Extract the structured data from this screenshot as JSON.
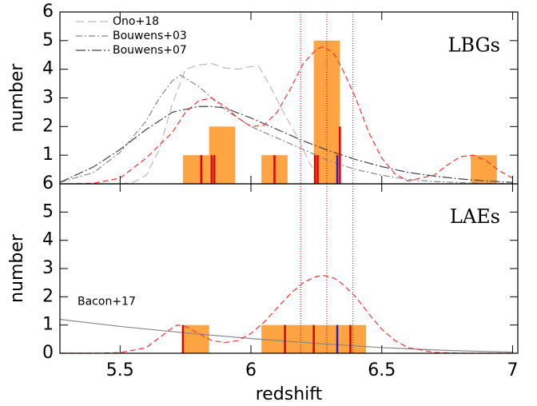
{
  "chart_data": [
    {
      "type": "histogram",
      "label": "LBGs",
      "ylabel": "number",
      "xlim": [
        5.27,
        7.02
      ],
      "ylim": [
        0,
        6
      ],
      "xticks": [
        5.5,
        6,
        6.5,
        7
      ],
      "yticks": [
        1,
        2,
        3,
        4,
        5,
        6
      ],
      "bins": [
        5.74,
        5.84,
        5.94,
        6.04,
        6.14,
        6.24,
        6.34,
        6.44,
        6.54,
        6.64,
        6.74,
        6.84,
        6.94
      ],
      "counts": [
        1,
        2,
        0,
        1,
        0,
        5,
        0,
        0,
        0,
        0,
        0,
        1
      ],
      "color": "#ffa443",
      "vlines": [
        6.19,
        6.29,
        6.39
      ],
      "legend": "upper left",
      "spikes": {
        "x": [
          5.81,
          5.85,
          5.86,
          6.09,
          6.245,
          6.255,
          6.33,
          6.34
        ],
        "values": [
          1,
          1,
          1,
          1,
          1,
          1,
          1,
          2
        ],
        "colors": [
          "#e00000",
          "#e00000",
          "#e00000",
          "#e00000",
          "#e00000",
          "#e00000",
          "#2020d0",
          "#e00000"
        ]
      },
      "series": [
        {
          "name": "Ono+18",
          "color": "#bbbbbb",
          "dash": "10,5",
          "x": [
            5.27,
            5.5,
            5.55,
            5.6,
            5.65,
            5.7,
            5.75,
            5.8,
            5.85,
            5.9,
            5.95,
            6.0,
            6.03,
            6.08,
            6.13,
            6.18,
            6.22,
            6.27
          ],
          "values": [
            0,
            0,
            0.05,
            0.3,
            1.2,
            2.8,
            4.0,
            4.15,
            4.2,
            4.05,
            4.0,
            4.1,
            4.1,
            3.3,
            2.4,
            1.6,
            0.8,
            0
          ]
        },
        {
          "name": "Bouwens+03",
          "color": "#888888",
          "dash": "8,3,2,3",
          "x": [
            5.27,
            5.4,
            5.5,
            5.6,
            5.65,
            5.7,
            5.73,
            5.8,
            5.9,
            6.0,
            6.1,
            6.2,
            6.3,
            6.4,
            6.5,
            6.6,
            6.7,
            6.8,
            6.9,
            7.0
          ],
          "values": [
            0.05,
            0.4,
            1.1,
            2.2,
            3.0,
            3.6,
            3.8,
            3.4,
            2.6,
            2.0,
            1.6,
            1.2,
            0.8,
            0.5,
            0.3,
            0.15,
            0.08,
            0.04,
            0.02,
            0.01
          ]
        },
        {
          "name": "Bouwens+07",
          "color": "#444444",
          "dash": "12,3,2,3",
          "x": [
            5.27,
            5.4,
            5.5,
            5.6,
            5.7,
            5.8,
            5.85,
            5.9,
            6.0,
            6.1,
            6.2,
            6.3,
            6.4,
            6.5,
            6.6,
            6.7,
            6.8,
            6.9,
            7.0
          ],
          "values": [
            0.05,
            0.6,
            1.2,
            1.9,
            2.5,
            2.7,
            2.7,
            2.65,
            2.3,
            1.9,
            1.5,
            1.15,
            0.85,
            0.6,
            0.4,
            0.27,
            0.17,
            0.1,
            0.05
          ]
        },
        {
          "color": "#ff3030",
          "dash": "7,4",
          "x": [
            5.3,
            5.4,
            5.5,
            5.6,
            5.7,
            5.75,
            5.8,
            5.85,
            5.9,
            5.95,
            6.0,
            6.05,
            6.1,
            6.15,
            6.2,
            6.25,
            6.28,
            6.32,
            6.35,
            6.4,
            6.45,
            6.5,
            6.55,
            6.6,
            6.7,
            6.75,
            6.8,
            6.85,
            6.9,
            6.95,
            7.0
          ],
          "values": [
            0,
            0.02,
            0.2,
            0.9,
            1.8,
            2.5,
            2.9,
            3.0,
            2.7,
            2.3,
            2.0,
            2.05,
            2.5,
            3.3,
            4.2,
            4.7,
            4.8,
            4.5,
            4.0,
            3.0,
            1.8,
            0.9,
            0.35,
            0.1,
            0.3,
            0.65,
            0.95,
            1.0,
            0.8,
            0.45,
            0.2
          ]
        }
      ]
    },
    {
      "type": "histogram",
      "label": "LAEs",
      "ylabel": "number",
      "xlabel": "redshift",
      "xlim": [
        5.27,
        7.02
      ],
      "ylim": [
        0,
        6
      ],
      "xticks": [
        5.5,
        6,
        6.5,
        7
      ],
      "yticks": [
        0,
        1,
        2,
        3,
        4,
        5,
        6
      ],
      "bins": [
        5.74,
        5.84,
        5.94,
        6.04,
        6.14,
        6.24,
        6.34,
        6.44
      ],
      "counts": [
        1,
        0,
        0,
        1,
        1,
        1,
        1
      ],
      "color": "#ffa443",
      "vlines": [
        6.19,
        6.29,
        6.39
      ],
      "spikes": {
        "x": [
          5.74,
          6.13,
          6.24,
          6.33,
          6.38
        ],
        "values": [
          1,
          1,
          1,
          1,
          1
        ],
        "colors": [
          "#e00000",
          "#e00000",
          "#e00000",
          "#2020d0",
          "#e00000"
        ]
      },
      "series": [
        {
          "name": "Bacon+17",
          "color": "#888888",
          "dash": "none",
          "x": [
            5.27,
            5.5,
            5.75,
            6.0,
            6.25,
            6.5,
            6.75,
            7.0
          ],
          "values": [
            1.2,
            0.95,
            0.72,
            0.52,
            0.35,
            0.2,
            0.1,
            0.04
          ]
        },
        {
          "color": "#ff3030",
          "dash": "7,4",
          "x": [
            5.27,
            5.4,
            5.5,
            5.6,
            5.65,
            5.7,
            5.72,
            5.75,
            5.8,
            5.85,
            5.9,
            5.95,
            6.0,
            6.05,
            6.1,
            6.15,
            6.2,
            6.25,
            6.28,
            6.32,
            6.35,
            6.4,
            6.45,
            6.5,
            6.55,
            6.6,
            6.7,
            6.8,
            7.0
          ],
          "values": [
            0,
            0,
            0.02,
            0.2,
            0.55,
            0.9,
            1.0,
            0.95,
            0.7,
            0.45,
            0.38,
            0.45,
            0.7,
            1.1,
            1.6,
            2.1,
            2.5,
            2.72,
            2.75,
            2.65,
            2.45,
            2.0,
            1.4,
            0.85,
            0.45,
            0.2,
            0.03,
            0,
            0
          ]
        }
      ]
    }
  ]
}
